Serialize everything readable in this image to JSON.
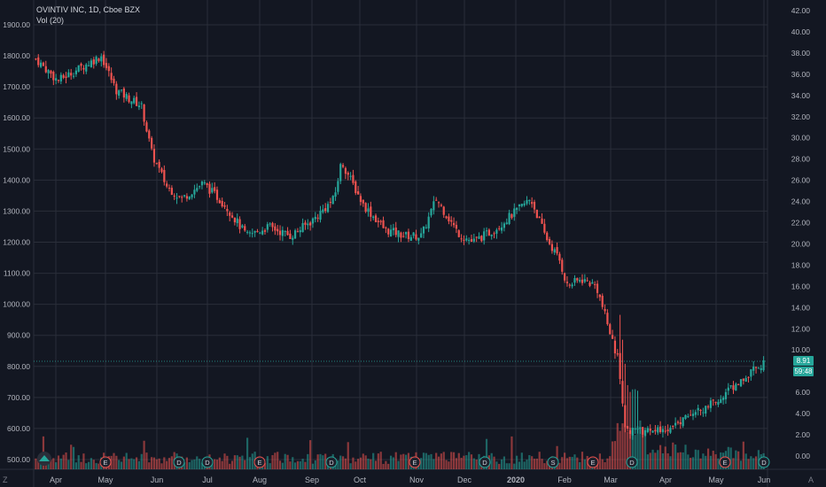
{
  "legend": {
    "title": "OVINTIV INC, 1D, Cboe BZX",
    "volume_label": "Vol (20)"
  },
  "price_tags": {
    "last_price": "8.91",
    "countdown": "59:48"
  },
  "corner": {
    "left_icon": "Z",
    "right_icon": "A"
  },
  "colors": {
    "background": "#131722",
    "up": "#26a69a",
    "down": "#ef5350",
    "grid": "#2a2e39",
    "axis_text": "#b2b5be"
  },
  "chart_data": {
    "type": "candlestick",
    "title": "OVINTIV INC, 1D, Cboe BZX",
    "y_left_ticks": [
      "1900.00",
      "1800.00",
      "1700.00",
      "1600.00",
      "1500.00",
      "1400.00",
      "1300.00",
      "1200.00",
      "1100.00",
      "1000.00",
      "900.00",
      "800.00",
      "700.00",
      "600.00",
      "500.00"
    ],
    "y_right_ticks": [
      "42.00",
      "40.00",
      "38.00",
      "36.00",
      "34.00",
      "32.00",
      "30.00",
      "28.00",
      "26.00",
      "24.00",
      "22.00",
      "20.00",
      "18.00",
      "16.00",
      "14.00",
      "12.00",
      "10.00",
      "8.00",
      "6.00",
      "4.00",
      "2.00",
      "0.00"
    ],
    "x_ticks": [
      "Apr",
      "May",
      "Jun",
      "Jul",
      "Aug",
      "Sep",
      "Oct",
      "Nov",
      "Dec",
      "2020",
      "Feb",
      "Mar",
      "Apr",
      "May",
      "Jun"
    ],
    "events": [
      {
        "label": "E",
        "month": "May"
      },
      {
        "label": "D",
        "month": "Jun"
      },
      {
        "label": "D",
        "month": "Jul"
      },
      {
        "label": "E",
        "month": "Aug"
      },
      {
        "label": "D",
        "month": "Sep"
      },
      {
        "label": "E",
        "month": "Nov"
      },
      {
        "label": "D",
        "month": "Dec"
      },
      {
        "label": "S",
        "month": "Feb"
      },
      {
        "label": "E",
        "month": "Mar"
      },
      {
        "label": "D",
        "month": "Mar"
      },
      {
        "label": "E",
        "month": "May"
      },
      {
        "label": "D",
        "month": "Jun"
      }
    ],
    "close_path": [
      [
        0,
        1790
      ],
      [
        0.03,
        1720
      ],
      [
        0.06,
        1760
      ],
      [
        0.09,
        1800
      ],
      [
        0.11,
        1690
      ],
      [
        0.13,
        1660
      ],
      [
        0.145,
        1640
      ],
      [
        0.16,
        1480
      ],
      [
        0.18,
        1380
      ],
      [
        0.2,
        1340
      ],
      [
        0.23,
        1390
      ],
      [
        0.26,
        1320
      ],
      [
        0.29,
        1220
      ],
      [
        0.32,
        1250
      ],
      [
        0.35,
        1220
      ],
      [
        0.38,
        1270
      ],
      [
        0.41,
        1340
      ],
      [
        0.42,
        1460
      ],
      [
        0.45,
        1320
      ],
      [
        0.48,
        1240
      ],
      [
        0.51,
        1220
      ],
      [
        0.53,
        1220
      ],
      [
        0.55,
        1340
      ],
      [
        0.58,
        1230
      ],
      [
        0.6,
        1200
      ],
      [
        0.63,
        1240
      ],
      [
        0.66,
        1300
      ],
      [
        0.68,
        1340
      ],
      [
        0.7,
        1220
      ],
      [
        0.72,
        1140
      ],
      [
        0.73,
        1060
      ],
      [
        0.75,
        1080
      ],
      [
        0.77,
        1060
      ],
      [
        0.79,
        900
      ],
      [
        0.8,
        820
      ],
      [
        0.81,
        600
      ],
      [
        0.83,
        590
      ],
      [
        0.86,
        590
      ],
      [
        0.9,
        640
      ],
      [
        0.93,
        680
      ],
      [
        0.96,
        740
      ],
      [
        1,
        810
      ]
    ],
    "last_value": 8.91,
    "ylim_left": [
      480,
      1920
    ],
    "ylim_right": [
      -0.6,
      42.0
    ]
  }
}
